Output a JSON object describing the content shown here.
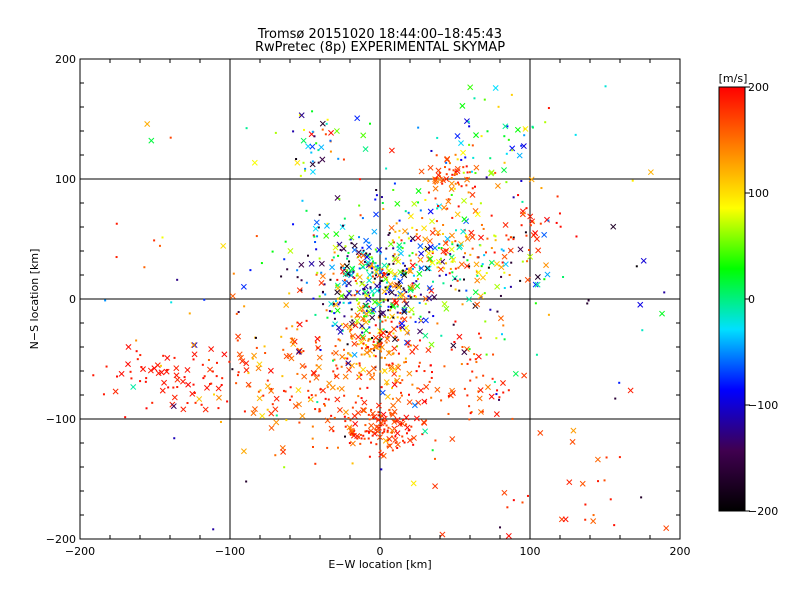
{
  "chart_data": {
    "type": "scatter",
    "title": "Tromsø 20151020 18:44:00–18:45:43",
    "subtitle": "RwPretec (8p) EXPERIMENTAL SKYMAP",
    "xlabel": "E−W location [km]",
    "ylabel": "N−S location [km]",
    "xlim": [
      -200,
      200
    ],
    "ylim": [
      -200,
      200
    ],
    "x_ticks": [
      -200,
      -100,
      0,
      100,
      200
    ],
    "y_ticks": [
      -200,
      -100,
      0,
      100,
      200
    ],
    "x_tick_labels": [
      "−200",
      "−100",
      "0",
      "100",
      "200"
    ],
    "y_tick_labels": [
      "−200",
      "−100",
      "0",
      "100",
      "200"
    ],
    "grid": true,
    "colorbar": {
      "label": "[m/s]",
      "range": [
        -200,
        200
      ],
      "ticks": [
        200,
        100,
        0,
        -100,
        -200
      ],
      "tick_labels": [
        "200",
        "100",
        "0",
        "−100",
        "−200"
      ],
      "colormap": [
        "#000000",
        "#400050",
        "#0000ff",
        "#00e0ff",
        "#00ff00",
        "#ffff00",
        "#ff8000",
        "#ff0000"
      ]
    },
    "markers": [
      {
        "name": "small-dot",
        "description": "dot markers"
      },
      {
        "name": "cross",
        "description": "x markers"
      }
    ],
    "clusters": [
      {
        "cx": 0,
        "cy": 0,
        "sx": 18,
        "sy": 22,
        "n": 260,
        "vmin": -200,
        "vmax": 200
      },
      {
        "cx": -5,
        "cy": 15,
        "sx": 25,
        "sy": 18,
        "n": 120,
        "vmin": -200,
        "vmax": 200
      },
      {
        "cx": 0,
        "cy": -45,
        "sx": 15,
        "sy": 15,
        "n": 110,
        "vmin": 100,
        "vmax": 200
      },
      {
        "cx": 0,
        "cy": -110,
        "sx": 12,
        "sy": 10,
        "n": 100,
        "vmin": 160,
        "vmax": 200
      },
      {
        "cx": -140,
        "cy": -70,
        "sx": 25,
        "sy": 15,
        "n": 75,
        "vmin": 180,
        "vmax": 200
      },
      {
        "cx": 45,
        "cy": 100,
        "sx": 10,
        "sy": 8,
        "n": 55,
        "vmin": 130,
        "vmax": 200
      },
      {
        "cx": -45,
        "cy": 125,
        "sx": 10,
        "sy": 15,
        "n": 35,
        "vmin": -200,
        "vmax": 200
      },
      {
        "cx": 80,
        "cy": 130,
        "sx": 20,
        "sy": 20,
        "n": 50,
        "vmin": -100,
        "vmax": 200
      },
      {
        "cx": -60,
        "cy": -60,
        "sx": 30,
        "sy": 30,
        "n": 110,
        "vmin": 100,
        "vmax": 200
      },
      {
        "cx": 50,
        "cy": -70,
        "sx": 25,
        "sy": 20,
        "n": 70,
        "vmin": 140,
        "vmax": 200
      },
      {
        "cx": 70,
        "cy": 30,
        "sx": 25,
        "sy": 20,
        "n": 70,
        "vmin": -200,
        "vmax": 200
      },
      {
        "cx": 100,
        "cy": 60,
        "sx": 15,
        "sy": 12,
        "n": 30,
        "vmin": 170,
        "vmax": 200
      },
      {
        "cx": 40,
        "cy": 40,
        "sx": 20,
        "sy": 20,
        "n": 90,
        "vmin": 60,
        "vmax": 200
      },
      {
        "cx": 130,
        "cy": -170,
        "sx": 40,
        "sy": 25,
        "n": 30,
        "vmin": 150,
        "vmax": 200
      },
      {
        "cx": -20,
        "cy": -80,
        "sx": 30,
        "sy": 25,
        "n": 90,
        "vmin": 140,
        "vmax": 200
      },
      {
        "cx": 0,
        "cy": 0,
        "sx": 100,
        "sy": 90,
        "n": 160,
        "vmin": -200,
        "vmax": 200
      },
      {
        "cx": -30,
        "cy": 40,
        "sx": 20,
        "sy": 25,
        "n": 60,
        "vmin": -200,
        "vmax": 100
      },
      {
        "cx": 20,
        "cy": 70,
        "sx": 30,
        "sy": 40,
        "n": 70,
        "vmin": -100,
        "vmax": 200
      }
    ]
  }
}
